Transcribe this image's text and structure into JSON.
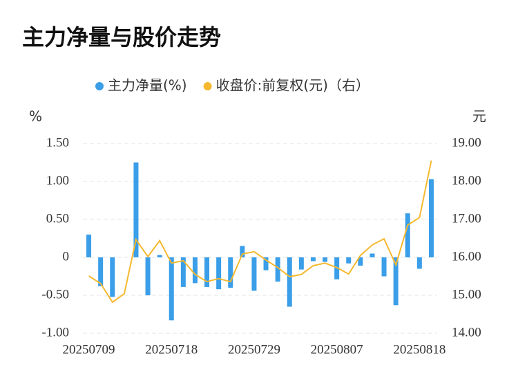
{
  "chart_data": {
    "type": "bar-line",
    "title": "主力净量与股价走势",
    "y_label": "%",
    "y2_label": "元",
    "categories": [
      "20250709",
      null,
      null,
      null,
      null,
      null,
      null,
      "20250718",
      null,
      null,
      null,
      null,
      null,
      null,
      "20250729",
      null,
      null,
      null,
      null,
      null,
      null,
      "20250807",
      null,
      null,
      null,
      null,
      null,
      null,
      "20250818",
      null
    ],
    "series": [
      {
        "name": "主力净量(%)",
        "color": "#3a9ee8",
        "type": "bar",
        "values": [
          0.3,
          -0.38,
          -0.52,
          0,
          1.25,
          -0.5,
          0.03,
          -0.83,
          -0.39,
          -0.34,
          -0.39,
          -0.42,
          -0.4,
          0.15,
          -0.44,
          -0.17,
          -0.32,
          -0.65,
          -0.16,
          -0.05,
          -0.06,
          -0.29,
          -0.08,
          -0.11,
          0.05,
          -0.25,
          -0.63,
          0.58,
          -0.15,
          1.03
        ]
      },
      {
        "name": "收盘价:前复权(元)（右）",
        "color": "#f5b82e",
        "type": "line",
        "axis": "y2",
        "values": [
          15.51,
          15.31,
          14.82,
          15.04,
          16.47,
          16.02,
          16.44,
          15.85,
          15.91,
          15.55,
          15.36,
          15.44,
          15.36,
          16.09,
          16.15,
          15.93,
          15.73,
          15.49,
          15.55,
          15.78,
          15.85,
          15.73,
          15.56,
          16.05,
          16.33,
          16.49,
          15.8,
          16.85,
          17.05,
          18.55
        ]
      }
    ],
    "ylim": [
      -1,
      1.5
    ],
    "yticks": [
      {
        "value": -1,
        "label": "-1.00"
      },
      {
        "value": -0.5,
        "label": "-0.50"
      },
      0,
      {
        "value": 0.5,
        "label": "0.50"
      },
      {
        "value": 1,
        "label": "1.00"
      },
      {
        "value": 1.5,
        "label": "1.50"
      }
    ],
    "y2lim": [
      14,
      19
    ],
    "y2ticks": [
      {
        "value": 14,
        "label": "14.00"
      },
      {
        "value": 15,
        "label": "15.00"
      },
      {
        "value": 16,
        "label": "16.00"
      },
      {
        "value": 17,
        "label": "17.00"
      },
      {
        "value": 18,
        "label": "18.00"
      },
      {
        "value": 19,
        "label": "19.00"
      }
    ],
    "grid": true,
    "legend": "top"
  }
}
